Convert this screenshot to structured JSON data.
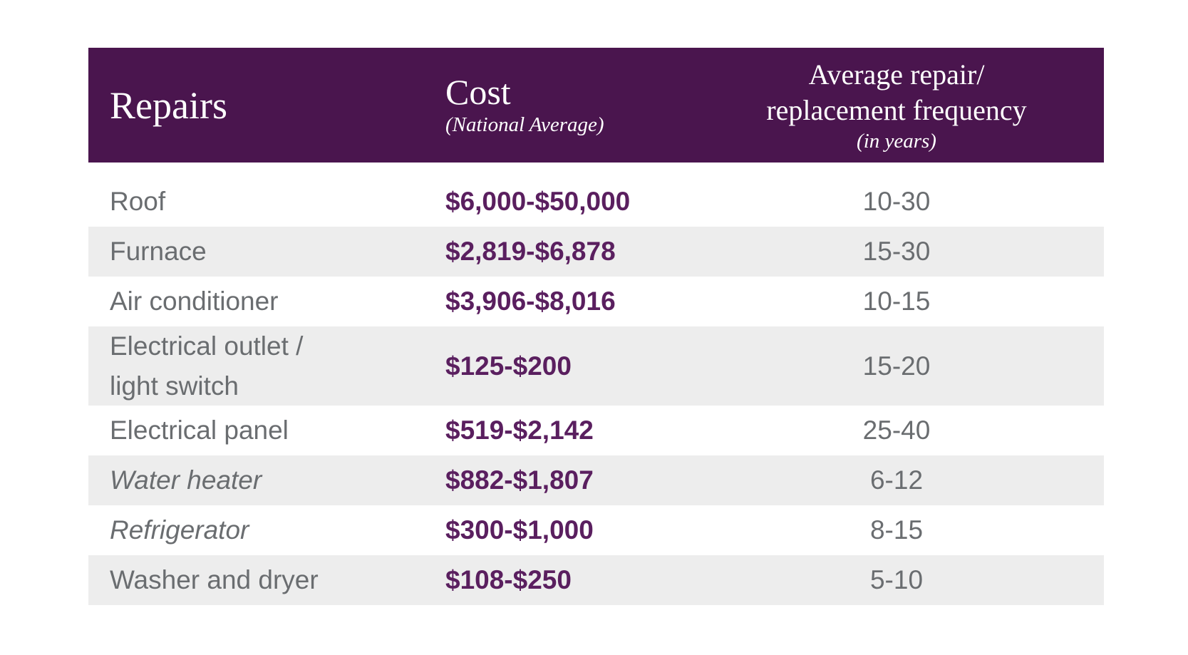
{
  "page": {
    "background": "#ffffff"
  },
  "colors": {
    "header_bg": "#4a154e",
    "header_text": "#ffffff",
    "cost_text": "#5a1f5f",
    "body_text": "#6a6d70",
    "stripe_bg": "#ededed",
    "row_bg": "#ffffff"
  },
  "table": {
    "header": {
      "repairs_label": "Repairs",
      "cost_label": "Cost",
      "cost_sublabel": "(National Average)",
      "frequency_line1": "Average repair/",
      "frequency_line2": "replacement frequency",
      "frequency_sublabel": "(in years)"
    },
    "rows": [
      {
        "repair": "Roof",
        "cost": "$6,000-$50,000",
        "frequency": "10-30",
        "italic": false
      },
      {
        "repair": "Furnace",
        "cost": "$2,819-$6,878",
        "frequency": "15-30",
        "italic": false
      },
      {
        "repair": "Air conditioner",
        "cost": "$3,906-$8,016",
        "frequency": "10-15",
        "italic": false
      },
      {
        "repair": "Electrical outlet /\nlight switch",
        "cost": "$125-$200",
        "frequency": "15-20",
        "italic": false
      },
      {
        "repair": "Electrical panel",
        "cost": "$519-$2,142",
        "frequency": "25-40",
        "italic": false
      },
      {
        "repair": "Water heater",
        "cost": "$882-$1,807",
        "frequency": "6-12",
        "italic": true
      },
      {
        "repair": "Refrigerator",
        "cost": "$300-$1,000",
        "frequency": "8-15",
        "italic": true
      },
      {
        "repair": "Washer and dryer",
        "cost": "$108-$250",
        "frequency": "5-10",
        "italic": false
      }
    ]
  },
  "chart_data": {
    "type": "table",
    "title": "",
    "columns": [
      "Repairs",
      "Cost (National Average)",
      "Average repair/replacement frequency (in years)"
    ],
    "rows": [
      [
        "Roof",
        "$6,000-$50,000",
        "10-30"
      ],
      [
        "Furnace",
        "$2,819-$6,878",
        "15-30"
      ],
      [
        "Air conditioner",
        "$3,906-$8,016",
        "10-15"
      ],
      [
        "Electrical outlet / light switch",
        "$125-$200",
        "15-20"
      ],
      [
        "Electrical panel",
        "$519-$2,142",
        "25-40"
      ],
      [
        "Water heater",
        "$882-$1,807",
        "6-12"
      ],
      [
        "Refrigerator",
        "$300-$1,000",
        "8-15"
      ],
      [
        "Washer and dryer",
        "$108-$250",
        "5-10"
      ]
    ]
  }
}
